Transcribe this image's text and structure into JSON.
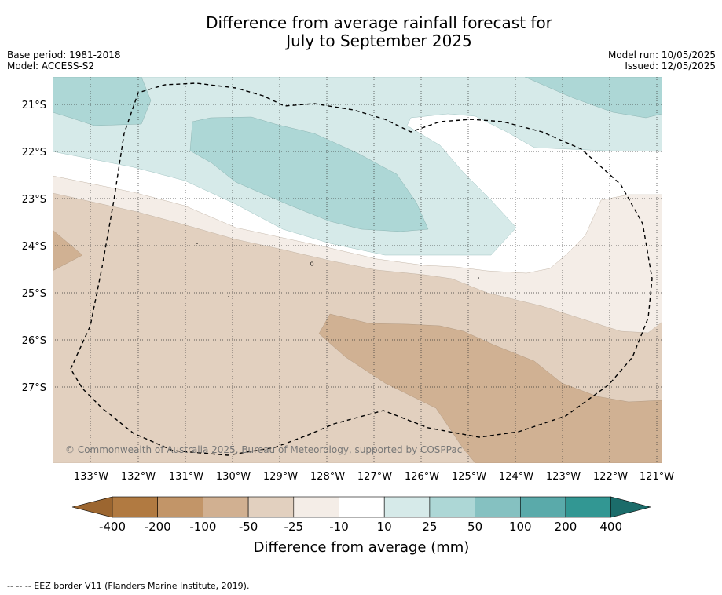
{
  "title": {
    "line1": "Difference from average rainfall forecast for",
    "line2": "July to September 2025"
  },
  "meta": {
    "base_period": "Base period: 1981-2018",
    "model": "Model: ACCESS-S2",
    "model_run": "Model run: 10/05/2025",
    "issued": "Issued: 12/05/2025"
  },
  "map": {
    "copyright": "© Commonwealth of Australia 2025, Bureau of Meteorology, supported by COSPPac",
    "lon_ticks": [
      "133°W",
      "132°W",
      "131°W",
      "130°W",
      "129°W",
      "128°W",
      "127°W",
      "126°W",
      "125°W",
      "124°W",
      "123°W",
      "122°W",
      "121°W"
    ],
    "lat_ticks": [
      "21°S",
      "22°S",
      "23°S",
      "24°S",
      "25°S",
      "26°S",
      "27°S"
    ],
    "colors": {
      "dry_50_100": "#d0b193",
      "dry_25_50": "#e2d0bf",
      "dry_10_25": "#f4ede7",
      "neutral": "#ffffff",
      "wet_10_25": "#d6eae9",
      "wet_25_50": "#add7d6"
    }
  },
  "colorbar": {
    "ticks": [
      "-400",
      "-200",
      "-100",
      "-50",
      "-25",
      "-10",
      "10",
      "25",
      "50",
      "100",
      "200",
      "400"
    ],
    "colors": [
      "#9c6630",
      "#b17a41",
      "#c29568",
      "#d1b091",
      "#e2d0bf",
      "#f4ede7",
      "#ffffff",
      "#d6eae9",
      "#add7d6",
      "#85c1c1",
      "#5aaaaa",
      "#329793",
      "#1b6c6a"
    ],
    "label": "Difference from average (mm)"
  },
  "footnote": "-- -- -- EEZ border V11 (Flanders Marine Institute, 2019)."
}
